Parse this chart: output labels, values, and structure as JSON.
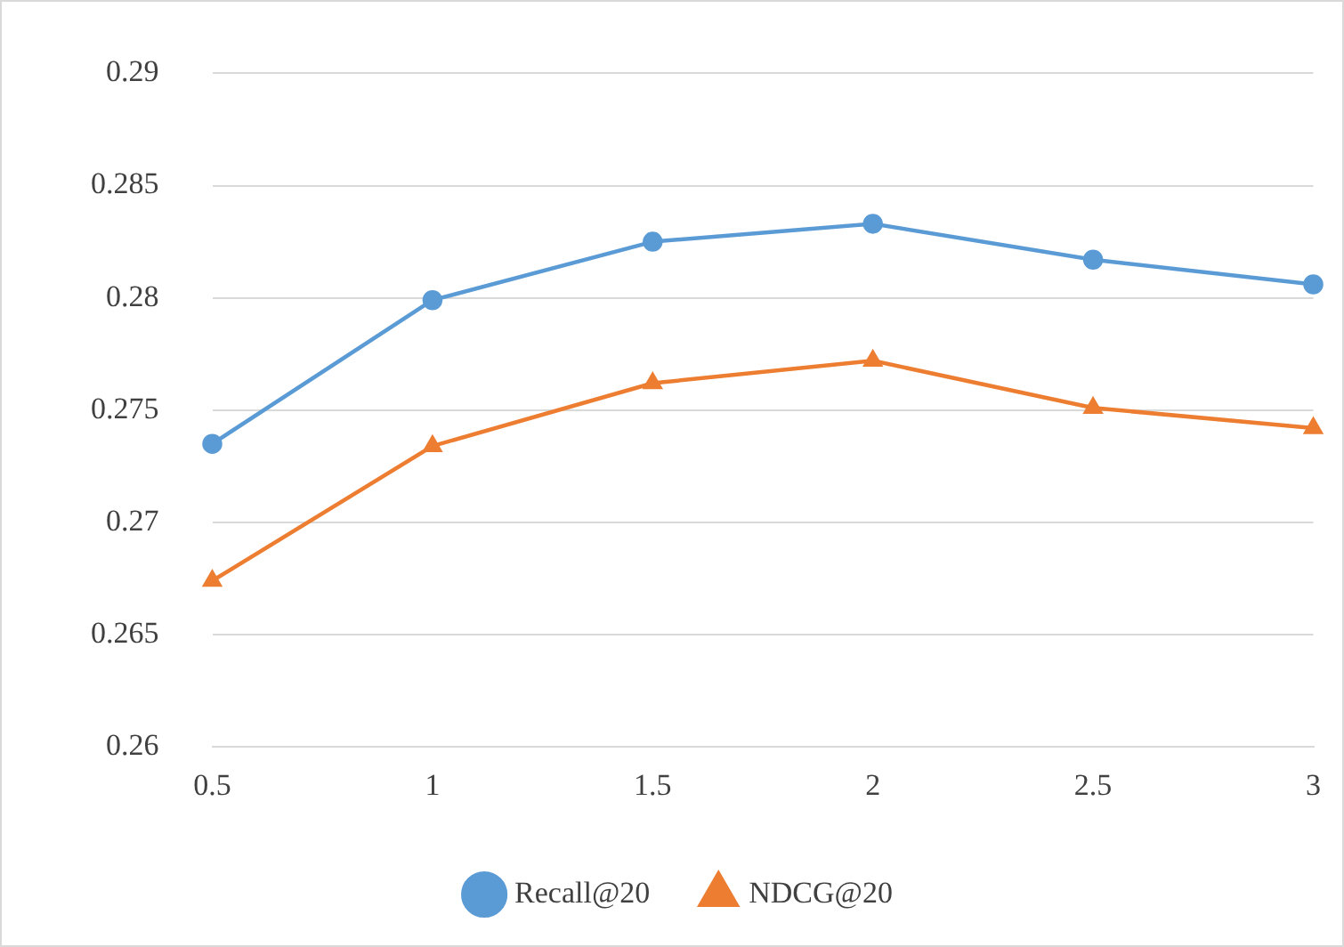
{
  "chart_data": {
    "type": "line",
    "categories": [
      "0.5",
      "1",
      "1.5",
      "2",
      "2.5",
      "3"
    ],
    "series": [
      {
        "name": "Recall@20",
        "color": "#5b9bd5",
        "marker": "circle",
        "values": [
          0.2735,
          0.2799,
          0.2825,
          0.2833,
          0.2817,
          0.2806
        ]
      },
      {
        "name": "NDCG@20",
        "color": "#ed7d31",
        "marker": "triangle",
        "values": [
          0.2674,
          0.2734,
          0.2762,
          0.2772,
          0.2751,
          0.2742
        ]
      }
    ],
    "ylim": [
      0.26,
      0.29
    ],
    "yticks": [
      0.26,
      0.265,
      0.27,
      0.275,
      0.28,
      0.285,
      0.29
    ],
    "grid": "y",
    "legend": "bottom"
  }
}
